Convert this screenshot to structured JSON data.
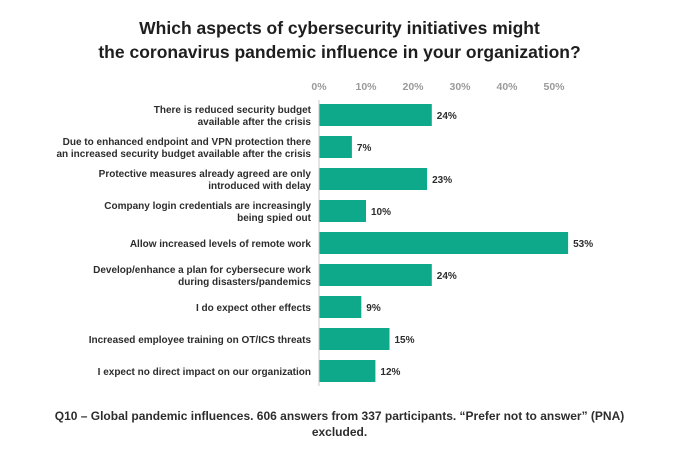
{
  "title_lines": [
    "Which aspects of cybersecurity initiatives might",
    "the coronavirus pandemic influence in your organization?"
  ],
  "footer_lines": [
    "Q10 – Global pandemic influences. 606 answers from 337 participants. “Prefer not to answer” (PNA)",
    "excluded."
  ],
  "colors": {
    "bar": "#0ea88b",
    "axis": "#9a9a9a",
    "text": "#2d2d2d"
  },
  "chart_data": {
    "type": "bar",
    "orientation": "horizontal",
    "xlim": [
      0,
      55
    ],
    "ticks": [
      0,
      10,
      20,
      30,
      40,
      50
    ],
    "tick_labels": [
      "0%",
      "10%",
      "20%",
      "30%",
      "40%",
      "50%"
    ],
    "grid": false,
    "categories": [
      [
        "There is reduced security budget",
        "available after the crisis"
      ],
      [
        "Due to enhanced endpoint and VPN protection there",
        "an increased security budget available after the crisis"
      ],
      [
        "Protective measures already agreed are only",
        "introduced with delay"
      ],
      [
        "Company login credentials are increasingly",
        "being spied out"
      ],
      [
        "Allow increased levels of remote work"
      ],
      [
        "Develop/enhance a plan for cybersecure work",
        "during disasters/pandemics"
      ],
      [
        "I do expect other effects"
      ],
      [
        "Increased employee training on OT/ICS threats"
      ],
      [
        "I expect no direct impact on our organization"
      ]
    ],
    "values": [
      24,
      7,
      23,
      10,
      53,
      24,
      9,
      15,
      12
    ],
    "value_labels": [
      "24%",
      "7%",
      "23%",
      "10%",
      "53%",
      "24%",
      "9%",
      "15%",
      "12%"
    ]
  }
}
